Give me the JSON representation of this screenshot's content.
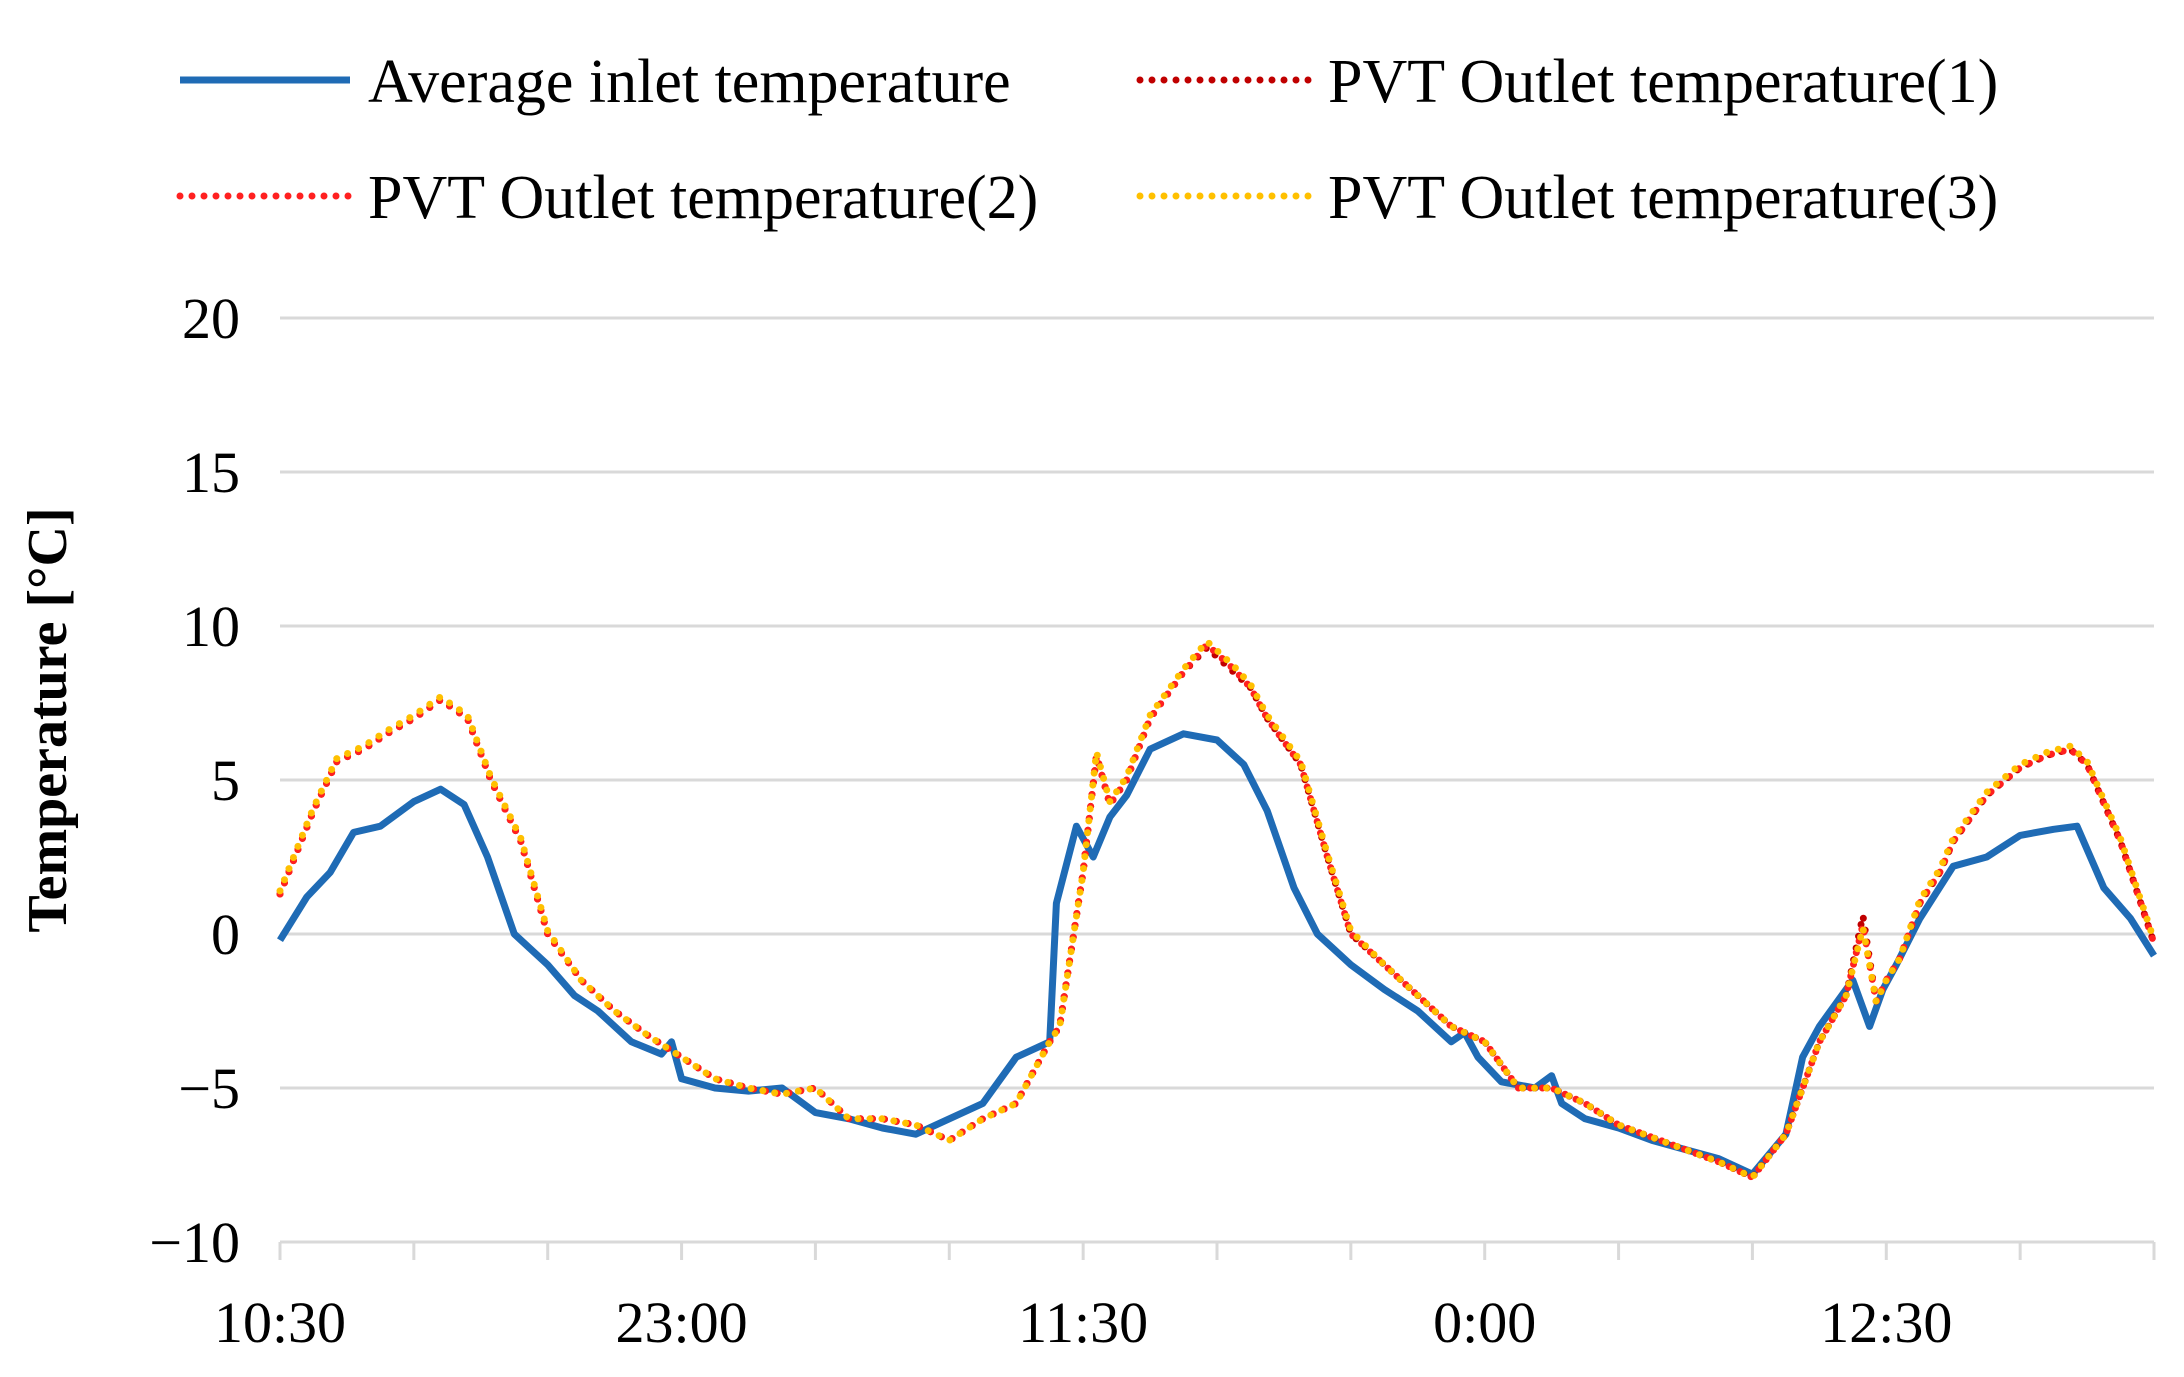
{
  "chart_data": {
    "type": "line",
    "title": "",
    "xlabel": "",
    "ylabel": "Temperature [°C]",
    "ylim": [
      -10,
      20
    ],
    "yticks": [
      -10,
      -5,
      0,
      5,
      10,
      15,
      20
    ],
    "ytick_labels": [
      "−10",
      "−5",
      "0",
      "5",
      "10",
      "15",
      "20"
    ],
    "x_unit": "hours",
    "xlim": [
      0,
      56
    ],
    "xtick_positions": [
      0,
      4,
      8,
      12,
      16,
      20,
      24,
      28,
      32,
      36,
      40,
      44,
      48,
      52,
      56
    ],
    "xtick_labels": [
      {
        "t": 0,
        "label": "10:30"
      },
      {
        "t": 12,
        "label": "23:00"
      },
      {
        "t": 24,
        "label": "11:30"
      },
      {
        "t": 36,
        "label": "0:00"
      },
      {
        "t": 48,
        "label": "12:30"
      }
    ],
    "grid": true,
    "legend_position": "top",
    "series": [
      {
        "name": "Average inlet temperature",
        "color": "#1f6bb5",
        "style": "solid",
        "x": [
          0,
          0.8,
          1.5,
          2.2,
          3,
          4,
          4.8,
          5.5,
          6.2,
          7,
          8,
          8.8,
          9.5,
          10.5,
          11.4,
          11.7,
          12,
          13,
          14,
          15,
          16,
          17,
          18,
          19,
          20,
          21,
          22,
          23,
          23.2,
          23.8,
          24.3,
          24.8,
          25.3,
          26,
          27,
          28,
          28.8,
          29.5,
          30.3,
          31,
          32,
          33,
          34,
          35,
          35.4,
          35.8,
          36.5,
          37.5,
          38,
          38.3,
          39,
          40,
          41,
          42,
          43,
          44,
          45,
          45.5,
          46,
          47,
          47.5,
          47.9,
          48.3,
          49,
          50,
          51,
          52,
          53,
          53.7,
          54.5,
          55.3,
          56
        ],
        "y": [
          -0.2,
          1.2,
          2,
          3.3,
          3.5,
          4.3,
          4.7,
          4.2,
          2.5,
          0,
          -1,
          -2,
          -2.5,
          -3.5,
          -3.9,
          -3.5,
          -4.7,
          -5,
          -5.1,
          -5,
          -5.8,
          -6,
          -6.3,
          -6.5,
          -6,
          -5.5,
          -4,
          -3.5,
          1,
          3.5,
          2.5,
          3.8,
          4.5,
          6,
          6.5,
          6.3,
          5.5,
          4,
          1.5,
          0,
          -1,
          -1.8,
          -2.5,
          -3.5,
          -3.2,
          -4,
          -4.8,
          -5,
          -4.6,
          -5.5,
          -6,
          -6.3,
          -6.7,
          -7,
          -7.3,
          -7.8,
          -6.5,
          -4,
          -3,
          -1.5,
          -3,
          -1.8,
          -1,
          0.5,
          2.2,
          2.5,
          3.2,
          3.4,
          3.5,
          1.5,
          0.5,
          -0.7
        ]
      },
      {
        "name": "PVT Outlet temperature(1)",
        "color": "#c00000",
        "style": "dotted",
        "x": [
          0,
          1,
          1.7,
          2.5,
          3.2,
          4,
          4.8,
          5.6,
          6.3,
          7.2,
          8,
          9,
          10,
          11,
          12,
          13,
          14,
          15,
          16,
          17,
          18,
          19,
          20,
          21,
          22,
          23,
          23.3,
          24,
          24.4,
          24.8,
          25.3,
          26,
          27,
          27.7,
          28.5,
          29,
          29.5,
          30.5,
          31.3,
          32,
          33,
          34,
          35,
          36,
          37,
          38,
          39,
          40,
          41,
          42,
          43,
          44,
          45,
          46,
          46.8,
          47.3,
          47.7,
          48,
          48.4,
          49,
          49.6,
          50,
          51,
          52,
          52.8,
          53.5,
          54,
          55,
          56
        ],
        "y": [
          1.3,
          4,
          5.6,
          6,
          6.5,
          7,
          7.6,
          7,
          5,
          3,
          0,
          -1.5,
          -2.5,
          -3.3,
          -4,
          -4.7,
          -5,
          -5.2,
          -5,
          -6,
          -6,
          -6.2,
          -6.7,
          -6,
          -5.5,
          -3.5,
          -3,
          2,
          5.8,
          4.2,
          5,
          7,
          8.5,
          9.3,
          8.5,
          8,
          7,
          5.5,
          2.5,
          0,
          -1,
          -2,
          -3,
          -3.5,
          -5,
          -5,
          -5.5,
          -6.2,
          -6.6,
          -7,
          -7.4,
          -7.9,
          -6.5,
          -3.5,
          -2,
          0.6,
          -2.2,
          -1.5,
          -0.8,
          1,
          2,
          3,
          4.5,
          5.4,
          5.8,
          6,
          5.5,
          3,
          -0.3
        ]
      },
      {
        "name": "PVT Outlet temperature(2)",
        "color": "#ff2020",
        "style": "dotted",
        "x": [
          0,
          1,
          1.7,
          2.5,
          3.2,
          4,
          4.8,
          5.6,
          6.3,
          7.2,
          8,
          9,
          10,
          11,
          12,
          13,
          14,
          15,
          16,
          17,
          18,
          19,
          20,
          21,
          22,
          23,
          23.3,
          24,
          24.4,
          24.8,
          25.3,
          26,
          27,
          27.7,
          28.5,
          29,
          29.5,
          30.5,
          31.3,
          32,
          33,
          34,
          35,
          36,
          37,
          38,
          39,
          40,
          41,
          42,
          43,
          44,
          45,
          46,
          46.8,
          47.3,
          47.7,
          48,
          48.4,
          49,
          49.6,
          50,
          51,
          52,
          52.8,
          53.5,
          54,
          55,
          56
        ],
        "y": [
          1.3,
          4,
          5.6,
          6,
          6.5,
          7,
          7.6,
          7,
          5,
          3,
          0,
          -1.5,
          -2.5,
          -3.3,
          -4,
          -4.7,
          -5,
          -5.2,
          -5,
          -6,
          -6,
          -6.2,
          -6.7,
          -6,
          -5.5,
          -3.5,
          -3,
          2,
          5.8,
          4.2,
          5,
          7,
          8.5,
          9.4,
          8.6,
          8,
          7,
          5.5,
          2.5,
          0,
          -1,
          -2,
          -3,
          -3.5,
          -5,
          -5,
          -5.5,
          -6.2,
          -6.6,
          -7,
          -7.4,
          -7.9,
          -6.5,
          -3.5,
          -2,
          0.3,
          -2.2,
          -1.5,
          -0.8,
          1,
          2,
          3,
          4.5,
          5.4,
          5.8,
          6,
          5.5,
          3,
          -0.3
        ]
      },
      {
        "name": "PVT Outlet temperature(3)",
        "color": "#ffc000",
        "style": "dotted",
        "x": [
          0,
          1,
          1.7,
          2.5,
          3.2,
          4,
          4.8,
          5.6,
          6.3,
          7.2,
          8,
          9,
          10,
          11,
          12,
          13,
          14,
          15,
          16,
          17,
          18,
          19,
          20,
          21,
          22,
          23,
          23.3,
          24,
          24.4,
          24.8,
          25.3,
          26,
          27,
          27.7,
          28.5,
          29,
          29.5,
          30.5,
          31.3,
          32,
          33,
          34,
          35,
          36,
          37,
          38,
          39,
          40,
          41,
          42,
          43,
          44,
          45,
          46,
          46.8,
          47.3,
          47.7,
          48,
          48.4,
          49,
          49.6,
          50,
          51,
          52,
          52.8,
          53.5,
          54,
          55,
          56
        ],
        "y": [
          1.4,
          4.1,
          5.7,
          6.1,
          6.6,
          7.1,
          7.7,
          7.1,
          5.1,
          3.1,
          0.1,
          -1.5,
          -2.5,
          -3.3,
          -4,
          -4.7,
          -5,
          -5.2,
          -5,
          -6,
          -6,
          -6.2,
          -6.7,
          -6,
          -5.5,
          -3.5,
          -3,
          2,
          5.9,
          4.3,
          5.1,
          7.1,
          8.6,
          9.5,
          8.7,
          8.1,
          7.1,
          5.6,
          2.6,
          0.1,
          -1,
          -2,
          -3,
          -3.5,
          -5,
          -5,
          -5.5,
          -6.2,
          -6.6,
          -7,
          -7.4,
          -7.9,
          -6.5,
          -3.5,
          -2,
          0.2,
          -2.2,
          -1.5,
          -0.8,
          1.1,
          2.1,
          3.1,
          4.6,
          5.5,
          5.9,
          6.1,
          5.6,
          3.1,
          -0.2
        ]
      }
    ]
  }
}
